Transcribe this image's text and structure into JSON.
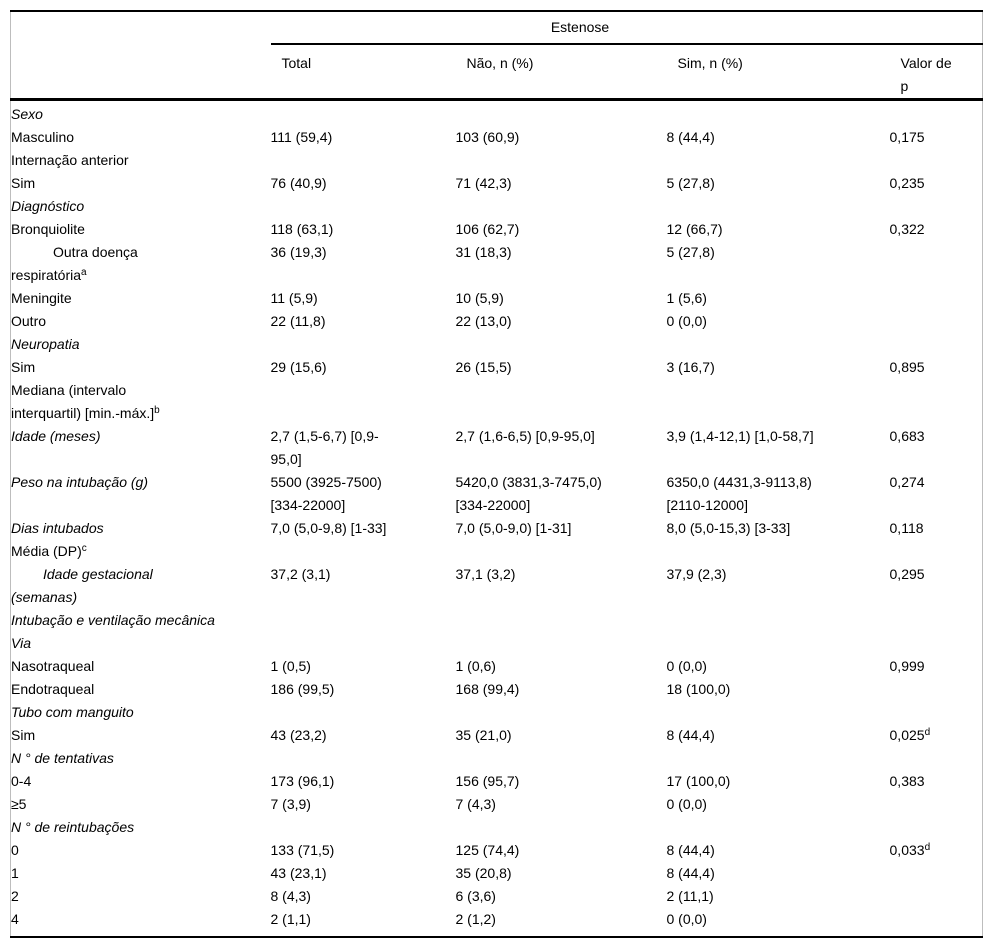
{
  "colors": {
    "text": "#000000",
    "rule": "#000000",
    "frame_border": "#bdbdbd",
    "background": "#ffffff"
  },
  "table": {
    "span_header": "Estenose",
    "columns": {
      "total": "Total",
      "nao": "Não, n (%)",
      "sim": "Sim, n (%)",
      "valor": "Valor de\np"
    },
    "rows": [
      {
        "label": "Sexo",
        "style": "group-italic",
        "total": "",
        "nao": "",
        "sim": "",
        "valor": ""
      },
      {
        "label": "Masculino",
        "style": "item",
        "total": "111 (59,4)",
        "nao": "103 (60,9)",
        "sim": "8 (44,4)",
        "valor": "0,175"
      },
      {
        "label": "Internação anterior",
        "style": "group-plain",
        "total": "",
        "nao": "",
        "sim": "",
        "valor": ""
      },
      {
        "label": "Sim",
        "style": "item",
        "total": "76 (40,9)",
        "nao": "71 (42,3)",
        "sim": "5 (27,8)",
        "valor": "0,235"
      },
      {
        "label": "Diagnóstico",
        "style": "group-italic",
        "total": "",
        "nao": "",
        "sim": "",
        "valor": ""
      },
      {
        "label": "Bronquiolite",
        "style": "item",
        "total": "118 (63,1)",
        "nao": "106 (62,7)",
        "sim": "12 (66,7)",
        "valor": "0,322"
      },
      {
        "label": "Outra doença\nrespiratória^a",
        "style": "item-hang",
        "total": "36 (19,3)",
        "nao": "31 (18,3)",
        "sim": "5 (27,8)",
        "valor": ""
      },
      {
        "label": "Meningite",
        "style": "item",
        "total": "11 (5,9)",
        "nao": "10 (5,9)",
        "sim": "1 (5,6)",
        "valor": ""
      },
      {
        "label": "Outro",
        "style": "item",
        "total": "22 (11,8)",
        "nao": "22 (13,0)",
        "sim": "0 (0,0)",
        "valor": ""
      },
      {
        "label": "Neuropatia",
        "style": "group-italic",
        "total": "",
        "nao": "",
        "sim": "",
        "valor": ""
      },
      {
        "label": "Sim",
        "style": "item",
        "total": "29 (15,6)",
        "nao": "26 (15,5)",
        "sim": "3 (16,7)",
        "valor": "0,895"
      },
      {
        "label": "Mediana (intervalo\ninterquartil) [min.-máx.]^b",
        "style": "section-bold",
        "total": "",
        "nao": "",
        "sim": "",
        "valor": ""
      },
      {
        "label": "Idade (meses)",
        "style": "group-italic",
        "total": "2,7 (1,5-6,7) [0,9-\n95,0]",
        "nao": "2,7 (1,6-6,5) [0,9-95,0]",
        "sim": "3,9 (1,4-12,1) [1,0-58,7]",
        "valor": "0,683"
      },
      {
        "label": "Peso na intubação (g)",
        "style": "group-italic",
        "total": "5500 (3925-7500)\n[334-22000]",
        "nao": "5420,0 (3831,3-7475,0)\n[334-22000]",
        "sim": "6350,0 (4431,3-9113,8)\n[2110-12000]",
        "valor": "0,274"
      },
      {
        "label": "Dias intubados",
        "style": "group-italic",
        "total": "7,0 (5,0-9,8) [1-33]",
        "nao": "7,0 (5,0-9,0) [1-31]",
        "sim": "8,0 (5,0-15,3) [3-33]",
        "valor": "0,118"
      },
      {
        "label": "Média (DP)^c",
        "style": "section-bold",
        "total": "",
        "nao": "",
        "sim": "",
        "valor": ""
      },
      {
        "label": "Idade gestacional\n(semanas)",
        "style": "group-italic-hang",
        "total": "37,2 (3,1)",
        "nao": "37,1 (3,2)",
        "sim": "37,9 (2,3)",
        "valor": "0,295"
      },
      {
        "label": "Intubação e ventilação mecânica",
        "style": "group-italic",
        "total": "",
        "nao": "",
        "sim": "",
        "valor": ""
      },
      {
        "label": "Via",
        "style": "group-italic",
        "total": "",
        "nao": "",
        "sim": "",
        "valor": ""
      },
      {
        "label": "Nasotraqueal",
        "style": "item",
        "total": "1 (0,5)",
        "nao": "1 (0,6)",
        "sim": "0 (0,0)",
        "valor": "0,999"
      },
      {
        "label": "Endotraqueal",
        "style": "item",
        "total": "186 (99,5)",
        "nao": "168 (99,4)",
        "sim": "18 (100,0)",
        "valor": ""
      },
      {
        "label": "Tubo com manguito",
        "style": "group-italic",
        "total": "",
        "nao": "",
        "sim": "",
        "valor": ""
      },
      {
        "label": "Sim",
        "style": "item",
        "total": "43 (23,2)",
        "nao": "35 (21,0)",
        "sim": "8 (44,4)",
        "valor": "0,025^d"
      },
      {
        "label": "N ° de tentativas",
        "style": "group-italic",
        "total": "",
        "nao": "",
        "sim": "",
        "valor": ""
      },
      {
        "label": "0-4",
        "style": "item",
        "total": "173 (96,1)",
        "nao": "156 (95,7)",
        "sim": "17 (100,0)",
        "valor": "0,383"
      },
      {
        "label": "≥5",
        "style": "item",
        "total": "7 (3,9)",
        "nao": "7 (4,3)",
        "sim": "0 (0,0)",
        "valor": ""
      },
      {
        "label": "N ° de reintubações",
        "style": "group-italic",
        "total": "",
        "nao": "",
        "sim": "",
        "valor": ""
      },
      {
        "label": "0",
        "style": "item",
        "total": "133 (71,5)",
        "nao": "125 (74,4)",
        "sim": "8 (44,4)",
        "valor": "0,033^d"
      },
      {
        "label": "1",
        "style": "item",
        "total": "43 (23,1)",
        "nao": "35 (20,8)",
        "sim": "8 (44,4)",
        "valor": ""
      },
      {
        "label": "2",
        "style": "item",
        "total": "8 (4,3)",
        "nao": "6 (3,6)",
        "sim": "2 (11,1)",
        "valor": ""
      },
      {
        "label": "4",
        "style": "item",
        "total": "2 (1,1)",
        "nao": "2 (1,2)",
        "sim": "0 (0,0)",
        "valor": ""
      }
    ]
  }
}
